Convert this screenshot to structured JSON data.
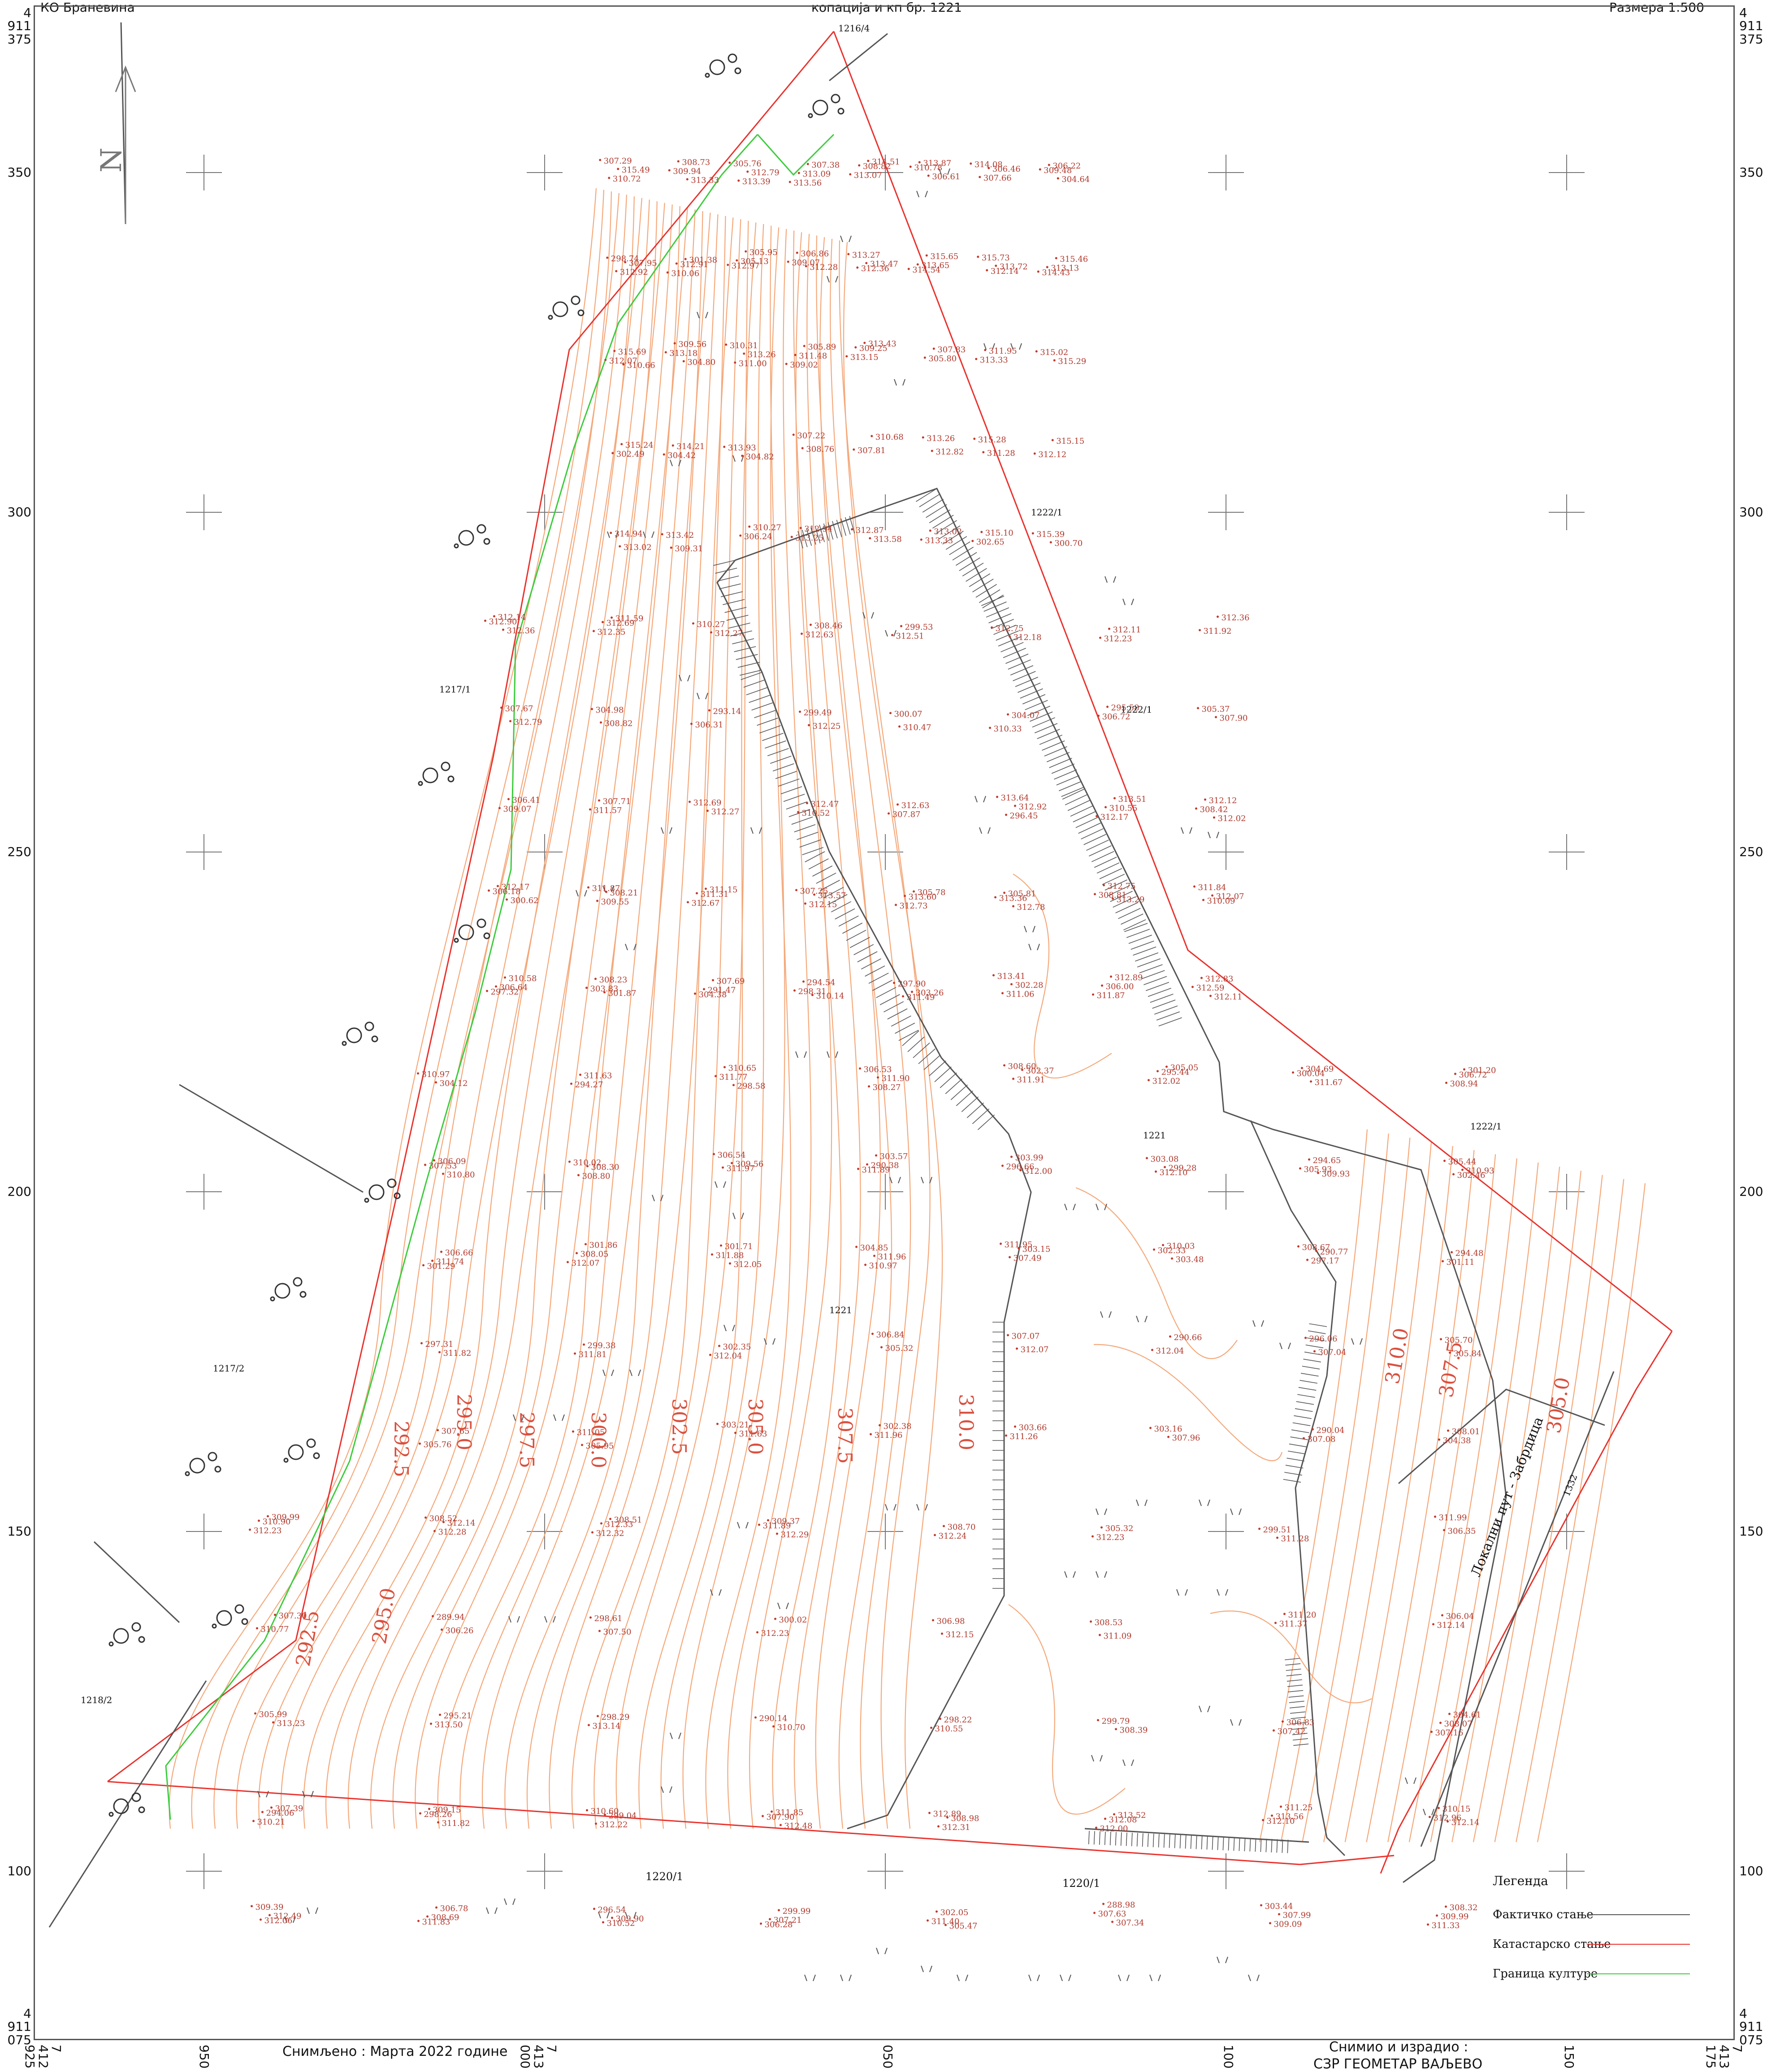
{
  "map": {
    "top_left_text": "КО Браневина",
    "top_center_text": "копација и кп бр. 1221",
    "top_right_text": "Размера 1:500",
    "north_arrow_label": "N",
    "right_edge_coords": [
      "4",
      "911",
      "375"
    ],
    "right_edge_coords_bottom": [
      "4",
      "911",
      "075"
    ],
    "left_edge_coords": [
      "4",
      "911",
      "375"
    ],
    "left_edge_coords_bottom": [
      "4",
      "911",
      "075"
    ],
    "y_ticks": [
      "350",
      "300",
      "250",
      "200",
      "150",
      "100"
    ],
    "x_ticks": [
      [
        "7",
        "412",
        "925"
      ],
      [
        "950"
      ],
      [
        "7",
        "413",
        "000"
      ],
      [
        "050"
      ],
      [
        "100"
      ],
      [
        "150"
      ],
      [
        "7",
        "413",
        "175"
      ]
    ],
    "surveyed_text": "Снимљено : Марта 2022 године",
    "surveyed_by_text": "Снимио и израдио :",
    "company_text": "СЗР ГЕОМЕТАР ВАЉЕВО",
    "road_label": "Локални пут - Забрдица",
    "parcels": [
      "1216/4",
      "1222/1",
      "1222/1",
      "1222/1",
      "1221",
      "1221",
      "1217/1",
      "1217/2",
      "1218/2",
      "1220/1",
      "1220/1",
      "1332"
    ],
    "contour_labels": [
      "292.5",
      "295.0",
      "297.5",
      "300.0",
      "302.5",
      "305.0",
      "307.5",
      "310.0",
      "292.5",
      "295.0",
      "310.0",
      "307.5",
      "305.0"
    ],
    "spot_heights": [
      "307.29",
      "308.73",
      "305.76",
      "307.38",
      "308.82",
      "310.78",
      "306.46",
      "309.48",
      "307.95",
      "312.91",
      "312.97",
      "312.28",
      "312.36",
      "314.54",
      "312.14",
      "314.43",
      "310.66",
      "309.56",
      "310.31",
      "305.89",
      "309.25",
      "307.83",
      "311.95",
      "315.02",
      "315.24",
      "314.21",
      "313.93",
      "308.76",
      "307.81",
      "312.82",
      "311.28",
      "312.12",
      "313.02",
      "309.31",
      "310.27",
      "312.94",
      "312.87",
      "313.02",
      "315.10",
      "315.39",
      "315.49",
      "309.94",
      "312.79",
      "313.09",
      "313.07",
      "306.61",
      "307.66",
      "304.64",
      "312.92",
      "310.06",
      "305.95",
      "306.86",
      "313.27",
      "315.65",
      "315.73",
      "315.46",
      "315.69",
      "313.18",
      "313.26",
      "311.48",
      "313.15",
      "305.80",
      "313.33",
      "315.29",
      "302.49",
      "304.42",
      "304.82",
      "307.22",
      "310.68",
      "313.26",
      "315.28",
      "315.15",
      "314.94",
      "313.42",
      "306.24",
      "313.25",
      "313.58",
      "313.33",
      "302.65",
      "300.70",
      "310.72",
      "313.33",
      "313.39",
      "313.56",
      "314.51",
      "313.87",
      "314.08",
      "306.22",
      "298.74",
      "301.38",
      "305.13",
      "309.07",
      "313.47",
      "313.65",
      "313.72",
      "313.13",
      "312.07",
      "304.80",
      "311.00",
      "309.02",
      "313.43",
      "313.64",
      "313.51",
      "312.12",
      "306.18",
      "308.21",
      "311.31",
      "313.57",
      "313.60",
      "313.36",
      "313.29",
      "310.09",
      "297.32",
      "301.87",
      "304.38",
      "310.14",
      "311.49",
      "313.41",
      "312.89",
      "312.83",
      "312.90",
      "312.69",
      "310.27",
      "308.46",
      "299.53",
      "312.75",
      "312.11",
      "311.92",
      "312.79",
      "308.82",
      "306.31",
      "312.25",
      "310.47",
      "310.33",
      "295.58",
      "305.37",
      "306.41",
      "307.71",
      "312.69",
      "312.47",
      "312.63",
      "312.92",
      "310.55",
      "308.42",
      "300.62",
      "309.55",
      "312.67",
      "312.15",
      "312.73",
      "312.78",
      "312.75",
      "311.84",
      "310.58",
      "308.23",
      "307.69",
      "294.54",
      "297.90",
      "302.28",
      "306.00",
      "312.59",
      "312.36",
      "312.35",
      "312.27",
      "312.63",
      "312.51",
      "312.18",
      "312.23",
      "312.36",
      "307.67",
      "304.98",
      "293.14",
      "299.49",
      "300.07",
      "304.07",
      "306.72",
      "307.90",
      "309.07",
      "311.57",
      "312.27",
      "310.52",
      "307.87",
      "296.45",
      "312.17",
      "312.02",
      "312.17",
      "311.87",
      "311.15",
      "307.25",
      "305.78",
      "305.81",
      "308.81",
      "312.07",
      "306.64",
      "303.83",
      "291.47",
      "298.31",
      "303.26",
      "311.06",
      "311.87",
      "312.11",
      "312.14",
      "311.59",
      "310.65",
      "306.53",
      "302.37",
      "295.44",
      "300.04",
      "306.72",
      "307.53",
      "308.30",
      "311.97",
      "311.89",
      "312.00",
      "312.10",
      "309.93",
      "302.46",
      "301.29",
      "301.86",
      "301.71",
      "304.85",
      "303.15",
      "302.33",
      "290.77",
      "294.48",
      "297.31",
      "299.38",
      "302.35",
      "305.32",
      "312.07",
      "312.04",
      "307.04",
      "305.84",
      "305.76",
      "305.95",
      "303.21",
      "302.38",
      "303.66",
      "303.16",
      "290.04",
      "308.01",
      "310.97",
      "311.63",
      "311.77",
      "311.90",
      "311.91",
      "312.02",
      "311.67",
      "308.94",
      "310.80",
      "308.80",
      "306.54",
      "303.57",
      "303.99",
      "303.08",
      "294.65",
      "305.44",
      "306.66",
      "308.05",
      "311.88",
      "311.96",
      "307.49",
      "303.48",
      "297.17",
      "301.11",
      "311.82",
      "311.81",
      "312.04",
      "306.84",
      "307.07",
      "290.66",
      "296.06",
      "305.70",
      "307.65",
      "311.05",
      "311.63",
      "311.96",
      "311.26",
      "307.96",
      "307.08",
      "304.38",
      "304.12",
      "294.27",
      "298.58",
      "308.27",
      "308.60",
      "305.05",
      "304.69",
      "301.20",
      "306.09",
      "310.02",
      "309.56",
      "290.38",
      "296.66",
      "299.28",
      "305.93",
      "310.93",
      "311.74",
      "312.07",
      "312.05",
      "310.97",
      "311.95",
      "310.03",
      "308.67",
      "304.61",
      "294.06",
      "298.26",
      "299.04",
      "307.90",
      "308.98",
      "312.08",
      "312.10",
      "312.14",
      "312.06",
      "311.83",
      "310.52",
      "306.28",
      "305.47",
      "288.98",
      "303.44",
      "308.32",
      "310.90",
      "312.14",
      "312.33",
      "311.89",
      "308.70",
      "305.32",
      "299.51",
      "306.35",
      "310.77",
      "306.26",
      "307.50",
      "312.23",
      "312.15",
      "311.09",
      "311.20",
      "306.04",
      "305.99",
      "295.21",
      "298.29",
      "290.14",
      "298.22",
      "299.79",
      "306.83",
      "308.07",
      "310.21",
      "311.82",
      "312.22",
      "312.48",
      "312.31",
      "312.00",
      "311.25",
      "310.15",
      "309.39",
      "306.78",
      "296.54",
      "299.99",
      "302.05",
      "307.63",
      "307.99",
      "309.99",
      "312.23",
      "312.28",
      "312.32",
      "312.29",
      "312.24",
      "312.23",
      "311.28",
      "311.99",
      "307.30",
      "289.94",
      "298.61",
      "300.02",
      "306.98",
      "308.53",
      "311.37",
      "312.14",
      "313.23",
      "313.50",
      "313.14",
      "310.70",
      "310.55",
      "308.39",
      "307.42",
      "307.16",
      "307.39",
      "309.15",
      "310.60",
      "311.85",
      "312.89",
      "313.52",
      "313.56",
      "312.96",
      "312.49",
      "308.69",
      "309.90",
      "307.21",
      "311.40",
      "307.34",
      "309.09",
      "311.33",
      "309.99",
      "308.52",
      "308.51",
      "309.37"
    ]
  },
  "legend": {
    "title": "Легенда",
    "items": [
      {
        "label": "Фактичко стање",
        "color": "#555555"
      },
      {
        "label": "Катастарско стање",
        "color": "#e8332e"
      },
      {
        "label": "Граница културе",
        "color": "#3ccc3c"
      }
    ]
  },
  "colors": {
    "contour": "#f4a87a",
    "cadastre": "#e8332e",
    "culture": "#3ccc3c",
    "factual": "#555555",
    "text_red": "#c0392b"
  }
}
